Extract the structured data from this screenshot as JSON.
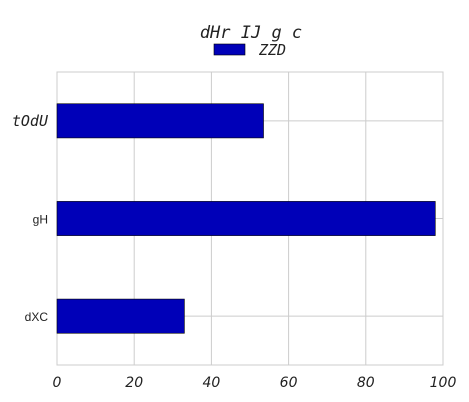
{
  "chart_data": {
    "type": "bar",
    "orientation": "horizontal",
    "title": "dHr IJ g c",
    "categories": [
      "tOdU",
      "gH",
      "dXC"
    ],
    "series": [
      {
        "name": "ZZD",
        "values": [
          53.5,
          98,
          33
        ]
      }
    ],
    "xlim": [
      0,
      100
    ],
    "xticks": [
      "0",
      "20",
      "40",
      "60",
      "80",
      "100"
    ],
    "xlabel": "",
    "ylabel": "",
    "grid": true,
    "legend": "top-center",
    "colors": {
      "bar": "#0000b8",
      "grid": "#cccccc",
      "text": "#222222"
    }
  }
}
